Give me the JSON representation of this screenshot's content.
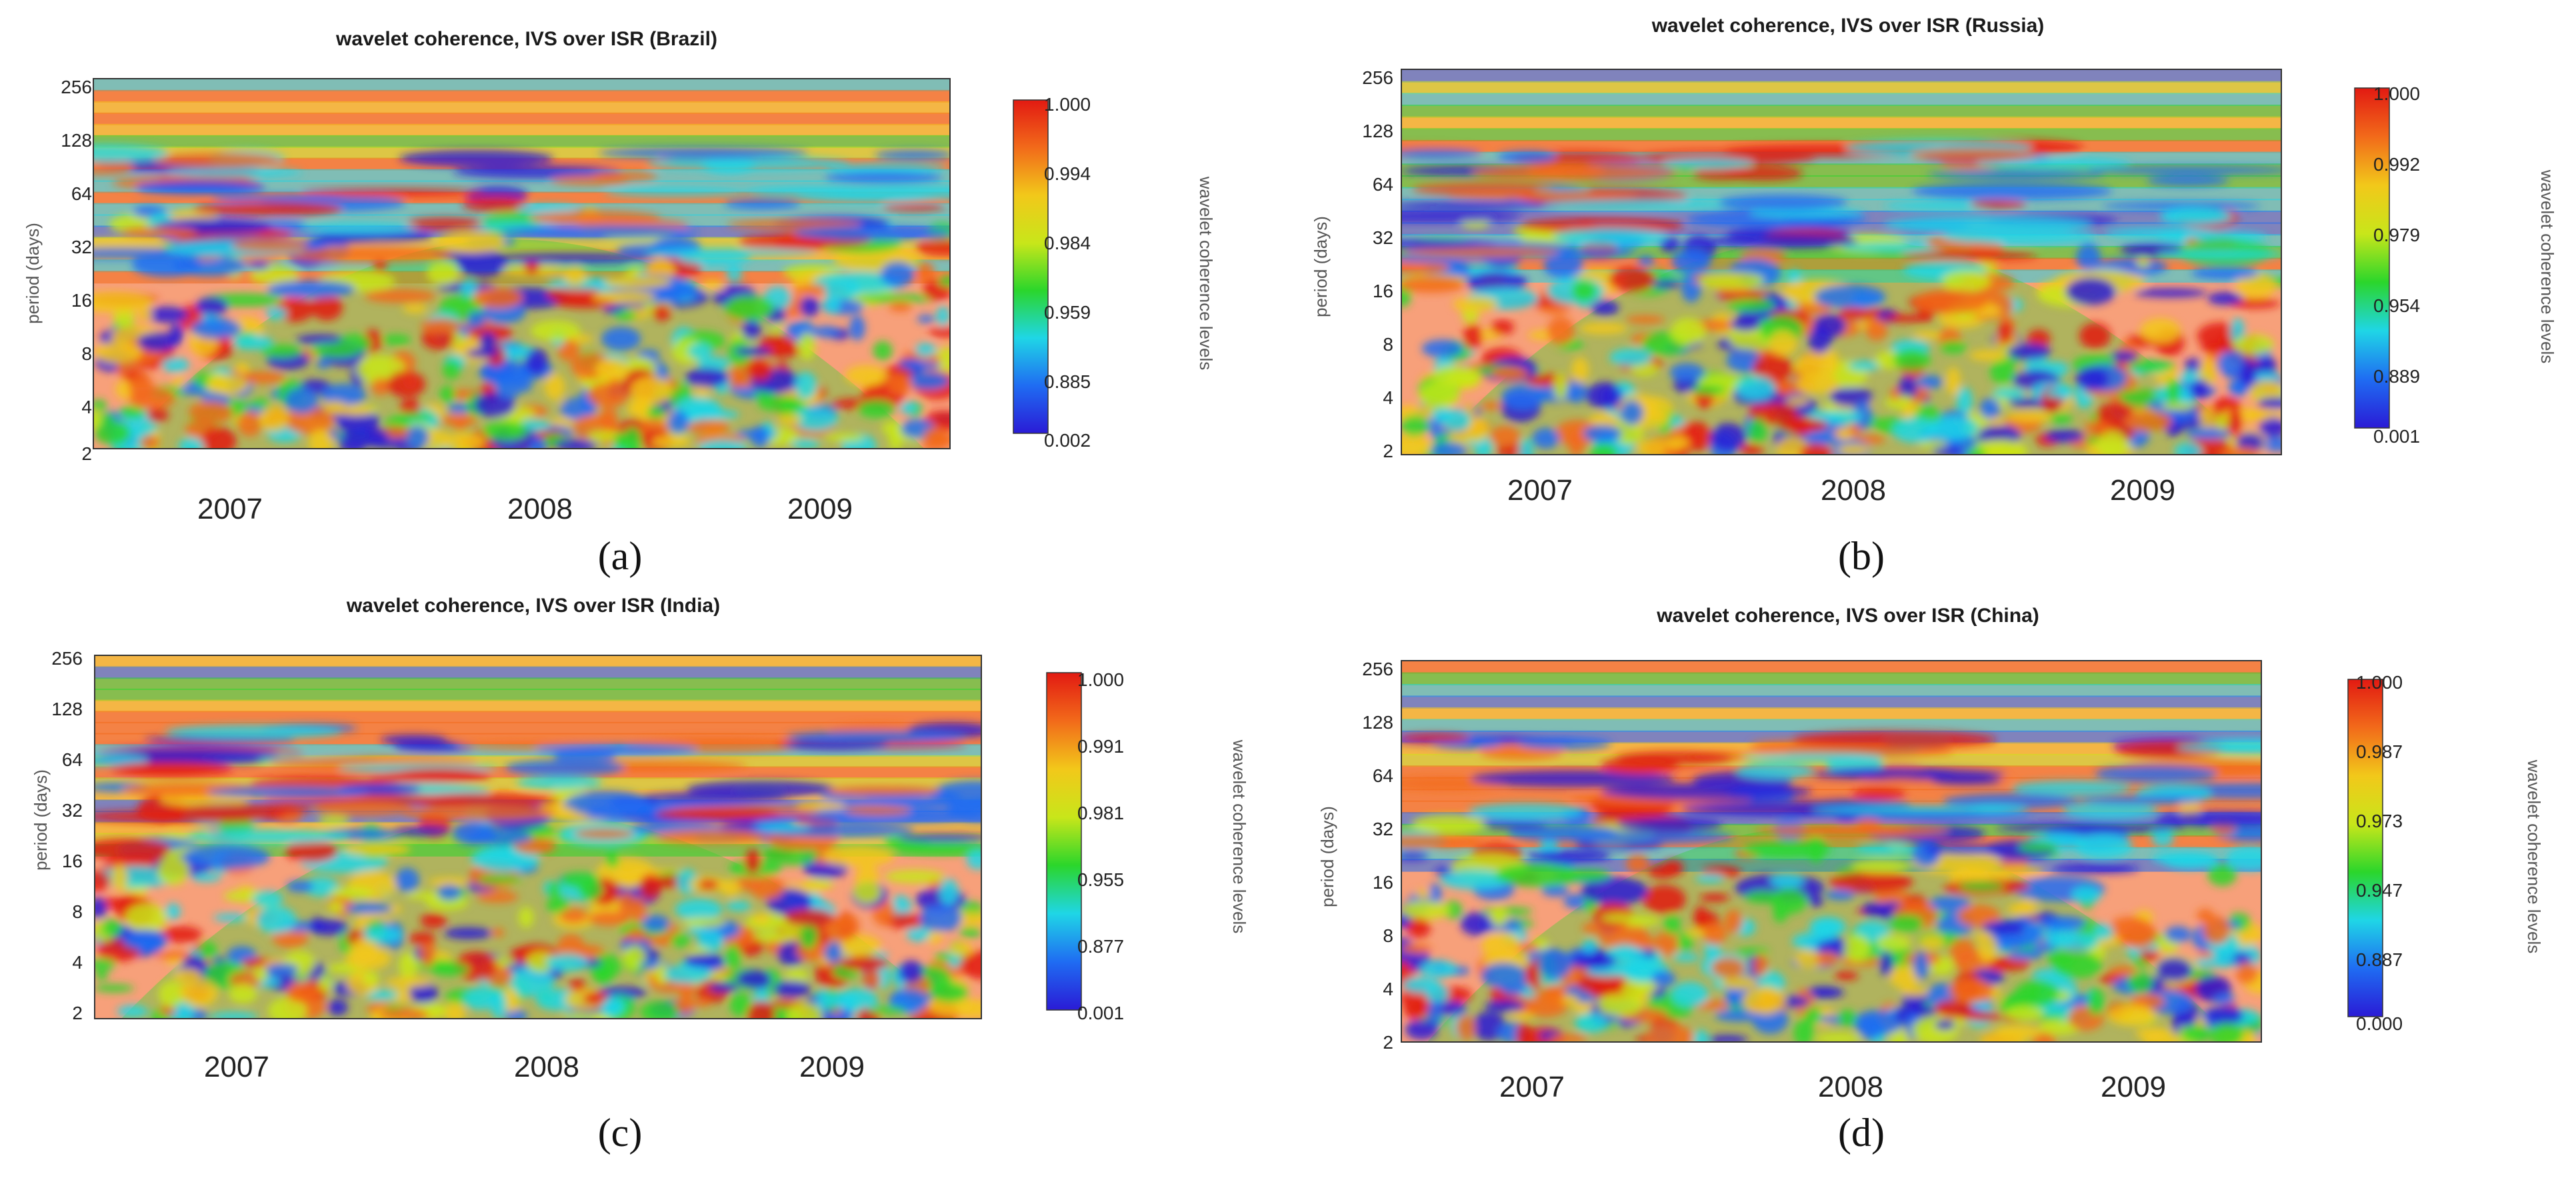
{
  "figure": {
    "captions": [
      "(a)",
      "(b)",
      "(c)",
      "(d)"
    ]
  },
  "chart_data": [
    {
      "type": "heatmap",
      "title": "wavelet coherence, IVS over ISR (Brazil)",
      "ylabel": "period (days)",
      "yticks": [
        "256",
        "128",
        "64",
        "32",
        "16",
        "8",
        "4",
        "2"
      ],
      "xticks": [
        "2007",
        "2008",
        "2009"
      ],
      "colorbar_label": "wavelet coherence levels",
      "colorbar_ticks": [
        "1.000",
        "0.994",
        "0.984",
        "0.959",
        "0.885",
        "0.002"
      ],
      "colors": [
        "#2a1bd6",
        "#1f6cf2",
        "#1fd6e6",
        "#2bd62b",
        "#c8e61a",
        "#f2c81a",
        "#f26a1a",
        "#e21a12"
      ]
    },
    {
      "type": "heatmap",
      "title": "wavelet coherence, IVS over ISR (Russia)",
      "ylabel": "period (days)",
      "yticks": [
        "256",
        "128",
        "64",
        "32",
        "16",
        "8",
        "4",
        "2"
      ],
      "xticks": [
        "2007",
        "2008",
        "2009"
      ],
      "colorbar_label": "wavelet coherence levels",
      "colorbar_ticks": [
        "1.000",
        "0.992",
        "0.979",
        "0.954",
        "0.889",
        "0.001"
      ],
      "colors": [
        "#2a1bd6",
        "#1f6cf2",
        "#1fd6e6",
        "#2bd62b",
        "#c8e61a",
        "#f2c81a",
        "#f26a1a",
        "#e21a12"
      ]
    },
    {
      "type": "heatmap",
      "title": "wavelet coherence, IVS over ISR (India)",
      "ylabel": "period (days)",
      "yticks": [
        "256",
        "128",
        "64",
        "32",
        "16",
        "8",
        "4",
        "2"
      ],
      "xticks": [
        "2007",
        "2008",
        "2009"
      ],
      "colorbar_label": "wavelet coherence levels",
      "colorbar_ticks": [
        "1.000",
        "0.991",
        "0.981",
        "0.955",
        "0.877",
        "0.001"
      ],
      "colors": [
        "#2a1bd6",
        "#1f6cf2",
        "#1fd6e6",
        "#2bd62b",
        "#c8e61a",
        "#f2c81a",
        "#f26a1a",
        "#e21a12"
      ]
    },
    {
      "type": "heatmap",
      "title": "wavelet coherence, IVS over ISR (China)",
      "ylabel": "period (days)",
      "yticks": [
        "256",
        "128",
        "64",
        "32",
        "16",
        "8",
        "4",
        "2"
      ],
      "xticks": [
        "2007",
        "2008",
        "2009"
      ],
      "colorbar_label": "wavelet coherence levels",
      "colorbar_ticks": [
        "1.000",
        "0.987",
        "0.973",
        "0.947",
        "0.887",
        "0.000"
      ],
      "colors": [
        "#2a1bd6",
        "#1f6cf2",
        "#1fd6e6",
        "#2bd62b",
        "#c8e61a",
        "#f2c81a",
        "#f26a1a",
        "#e21a12"
      ]
    }
  ]
}
